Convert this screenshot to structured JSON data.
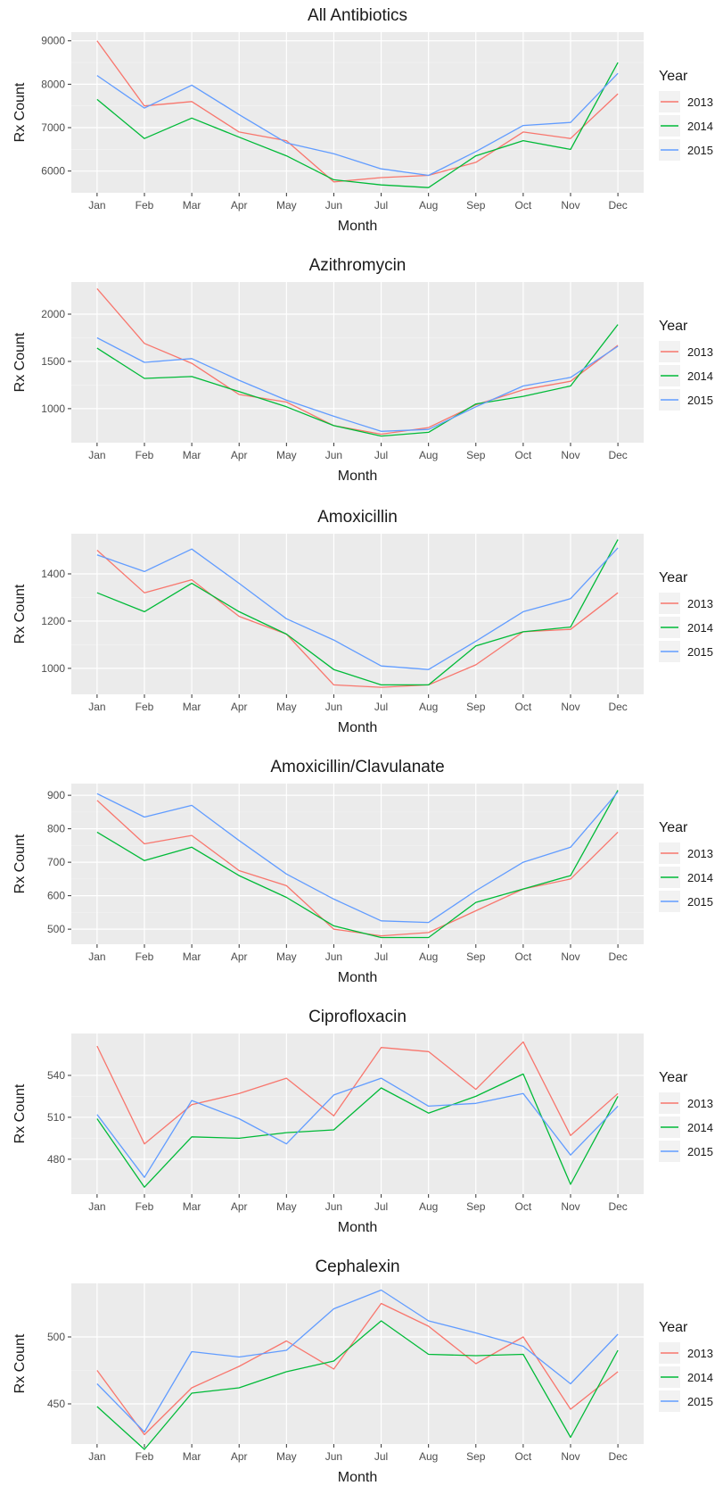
{
  "legend_title": "Year",
  "colors": {
    "2013": "#F8766D",
    "2014": "#00BA38",
    "2015": "#619CFF"
  },
  "chart_data": [
    {
      "type": "line",
      "title": "All Antibiotics",
      "xlabel": "Month",
      "ylabel": "Rx Count",
      "categories": [
        "Jan",
        "Feb",
        "Mar",
        "Apr",
        "May",
        "Jun",
        "Jul",
        "Aug",
        "Sep",
        "Oct",
        "Nov",
        "Dec"
      ],
      "ylim": [
        5500,
        9200
      ],
      "yticks": [
        6000,
        7000,
        8000,
        9000
      ],
      "grid": true,
      "legend": "right",
      "series": [
        {
          "name": "2013",
          "values": [
            9000,
            7500,
            7600,
            6900,
            6700,
            5750,
            5850,
            5900,
            6200,
            6900,
            6750,
            7780
          ]
        },
        {
          "name": "2014",
          "values": [
            7650,
            6750,
            7220,
            6780,
            6350,
            5800,
            5680,
            5620,
            6350,
            6700,
            6500,
            8500
          ]
        },
        {
          "name": "2015",
          "values": [
            8200,
            7450,
            7980,
            7300,
            6650,
            6400,
            6050,
            5900,
            6450,
            7050,
            7120,
            8250
          ]
        }
      ]
    },
    {
      "type": "line",
      "title": "Azithromycin",
      "xlabel": "Month",
      "ylabel": "Rx Count",
      "categories": [
        "Jan",
        "Feb",
        "Mar",
        "Apr",
        "May",
        "Jun",
        "Jul",
        "Aug",
        "Sep",
        "Oct",
        "Nov",
        "Dec"
      ],
      "ylim": [
        640,
        2340
      ],
      "yticks": [
        1000,
        1500,
        2000
      ],
      "grid": true,
      "legend": "right",
      "series": [
        {
          "name": "2013",
          "values": [
            2270,
            1690,
            1480,
            1150,
            1070,
            820,
            730,
            800,
            1040,
            1200,
            1290,
            1670
          ]
        },
        {
          "name": "2014",
          "values": [
            1640,
            1320,
            1340,
            1180,
            1020,
            820,
            710,
            750,
            1050,
            1130,
            1240,
            1890
          ]
        },
        {
          "name": "2015",
          "values": [
            1750,
            1490,
            1530,
            1300,
            1090,
            920,
            760,
            780,
            1020,
            1240,
            1330,
            1660
          ]
        }
      ]
    },
    {
      "type": "line",
      "title": "Amoxicillin",
      "xlabel": "Month",
      "ylabel": "Rx Count",
      "categories": [
        "Jan",
        "Feb",
        "Mar",
        "Apr",
        "May",
        "Jun",
        "Jul",
        "Aug",
        "Sep",
        "Oct",
        "Nov",
        "Dec"
      ],
      "ylim": [
        890,
        1570
      ],
      "yticks": [
        1000,
        1200,
        1400
      ],
      "grid": true,
      "legend": "right",
      "series": [
        {
          "name": "2013",
          "values": [
            1500,
            1320,
            1375,
            1220,
            1145,
            930,
            920,
            930,
            1015,
            1155,
            1165,
            1320
          ]
        },
        {
          "name": "2014",
          "values": [
            1320,
            1240,
            1360,
            1240,
            1145,
            995,
            930,
            930,
            1095,
            1155,
            1175,
            1545
          ]
        },
        {
          "name": "2015",
          "values": [
            1480,
            1410,
            1505,
            1360,
            1210,
            1120,
            1010,
            995,
            1115,
            1240,
            1295,
            1510
          ]
        }
      ]
    },
    {
      "type": "line",
      "title": "Amoxicillin/Clavulanate",
      "xlabel": "Month",
      "ylabel": "Rx Count",
      "categories": [
        "Jan",
        "Feb",
        "Mar",
        "Apr",
        "May",
        "Jun",
        "Jul",
        "Aug",
        "Sep",
        "Oct",
        "Nov",
        "Dec"
      ],
      "ylim": [
        455,
        935
      ],
      "yticks": [
        500,
        600,
        700,
        800,
        900
      ],
      "grid": true,
      "legend": "right",
      "series": [
        {
          "name": "2013",
          "values": [
            885,
            755,
            780,
            675,
            630,
            500,
            480,
            490,
            555,
            620,
            650,
            790
          ]
        },
        {
          "name": "2014",
          "values": [
            790,
            705,
            745,
            660,
            595,
            510,
            475,
            475,
            580,
            620,
            660,
            915
          ]
        },
        {
          "name": "2015",
          "values": [
            905,
            835,
            870,
            765,
            665,
            590,
            525,
            520,
            615,
            700,
            745,
            910
          ]
        }
      ]
    },
    {
      "type": "line",
      "title": "Ciprofloxacin",
      "xlabel": "Month",
      "ylabel": "Rx Count",
      "categories": [
        "Jan",
        "Feb",
        "Mar",
        "Apr",
        "May",
        "Jun",
        "Jul",
        "Aug",
        "Sep",
        "Oct",
        "Nov",
        "Dec"
      ],
      "ylim": [
        455,
        570
      ],
      "yticks": [
        480,
        510,
        540
      ],
      "grid": true,
      "legend": "right",
      "series": [
        {
          "name": "2013",
          "values": [
            561,
            491,
            519,
            527,
            538,
            511,
            560,
            557,
            530,
            564,
            497,
            527
          ]
        },
        {
          "name": "2014",
          "values": [
            509,
            460,
            496,
            495,
            499,
            501,
            531,
            513,
            525,
            541,
            462,
            525
          ]
        },
        {
          "name": "2015",
          "values": [
            512,
            467,
            522,
            509,
            491,
            526,
            538,
            518,
            520,
            527,
            483,
            518
          ]
        }
      ]
    },
    {
      "type": "line",
      "title": "Cephalexin",
      "xlabel": "Month",
      "ylabel": "Rx Count",
      "categories": [
        "Jan",
        "Feb",
        "Mar",
        "Apr",
        "May",
        "Jun",
        "Jul",
        "Aug",
        "Sep",
        "Oct",
        "Nov",
        "Dec"
      ],
      "ylim": [
        420,
        540
      ],
      "yticks": [
        450,
        500
      ],
      "grid": true,
      "legend": "right",
      "series": [
        {
          "name": "2013",
          "values": [
            475,
            427,
            462,
            478,
            497,
            476,
            525,
            508,
            480,
            500,
            446,
            474
          ]
        },
        {
          "name": "2014",
          "values": [
            448,
            416,
            458,
            462,
            474,
            482,
            512,
            487,
            486,
            487,
            425,
            490
          ]
        },
        {
          "name": "2015",
          "values": [
            465,
            429,
            489,
            485,
            490,
            521,
            535,
            512,
            503,
            493,
            465,
            502
          ]
        }
      ]
    }
  ]
}
